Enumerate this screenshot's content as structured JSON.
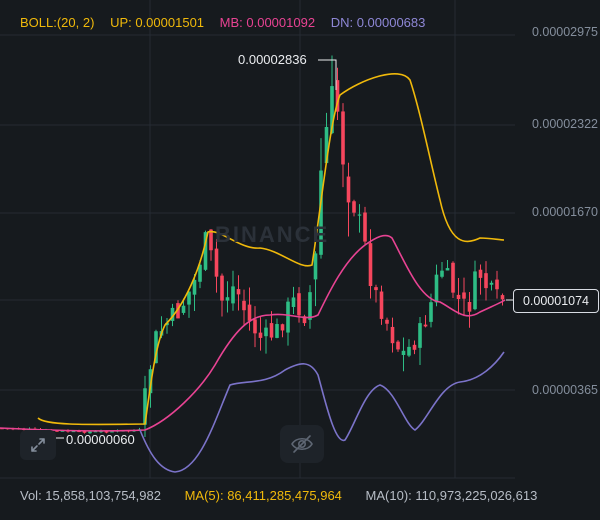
{
  "header": {
    "boll_label": "BOLL:(20, 2)",
    "up_label": "UP: 0.00001501",
    "mb_label": "MB: 0.00001092",
    "dn_label": "DN: 0.00000683"
  },
  "colors": {
    "background": "#161a1e",
    "up_candle": "#2ebd85",
    "down_candle": "#f6465d",
    "boll_up": "#f0b90b",
    "boll_mb": "#e84393",
    "boll_dn": "#7b73c9",
    "grid": "#252b33"
  },
  "y_axis": {
    "labels": [
      "0.00002975",
      "0.00002322",
      "0.00001670",
      "0.00000365"
    ]
  },
  "last_price": "0.00001074",
  "high_label": "0.00002836",
  "low_label": "0.00000060",
  "watermark": "BINANCE",
  "footer": {
    "vol": "Vol: 15,858,103,754,982",
    "ma5": "MA(5): 86,411,285,475,964",
    "ma10": "MA(10): 110,973,225,026,613"
  },
  "icons": {
    "expand": "expand-arrows-icon",
    "hide": "eye-slash-icon"
  }
}
